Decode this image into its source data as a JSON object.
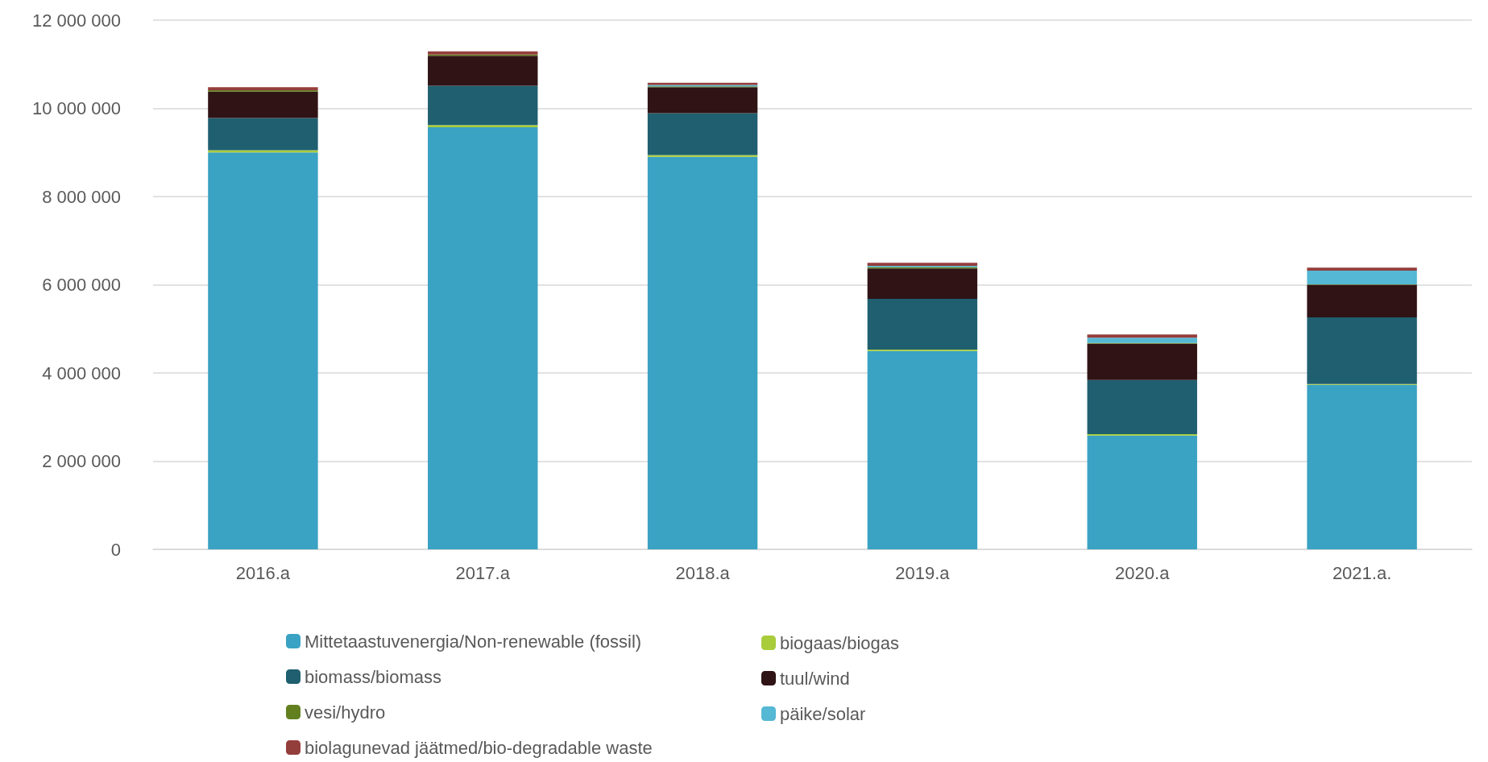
{
  "chart_data": {
    "type": "bar",
    "stacked": true,
    "categories": [
      "2016.a",
      "2017.a",
      "2018.a",
      "2019.a",
      "2020.a",
      "2021.a."
    ],
    "series": [
      {
        "name": "Mittetaastuvenergia/Non-renewable (fossil)",
        "color": "#3aa2c3",
        "values": [
          9000000,
          9570000,
          8900000,
          4500000,
          2580000,
          3730000
        ]
      },
      {
        "name": "biogaas/biogas",
        "color": "#a8cc3a",
        "values": [
          50000,
          50000,
          40000,
          30000,
          30000,
          20000
        ]
      },
      {
        "name": "biomass/biomass",
        "color": "#1f5f70",
        "values": [
          730000,
          890000,
          950000,
          1150000,
          1230000,
          1510000
        ]
      },
      {
        "name": "tuul/wind",
        "color": "#2f1315",
        "values": [
          600000,
          680000,
          590000,
          690000,
          820000,
          740000
        ]
      },
      {
        "name": "vesi/hydro",
        "color": "#62801f",
        "values": [
          30000,
          30000,
          20000,
          30000,
          20000,
          10000
        ]
      },
      {
        "name": "päike/solar",
        "color": "#55b8d4",
        "values": [
          null,
          null,
          30000,
          30000,
          120000,
          310000
        ]
      },
      {
        "name": "biolagunevad jäätmed/bio-degradable waste",
        "color": "#943e3c",
        "values": [
          70000,
          70000,
          50000,
          70000,
          70000,
          70000
        ]
      }
    ],
    "ylim": [
      0,
      12000000
    ],
    "yticks": [
      0,
      2000000,
      4000000,
      6000000,
      8000000,
      10000000,
      12000000
    ],
    "grid": "y",
    "legend": "bottom"
  }
}
